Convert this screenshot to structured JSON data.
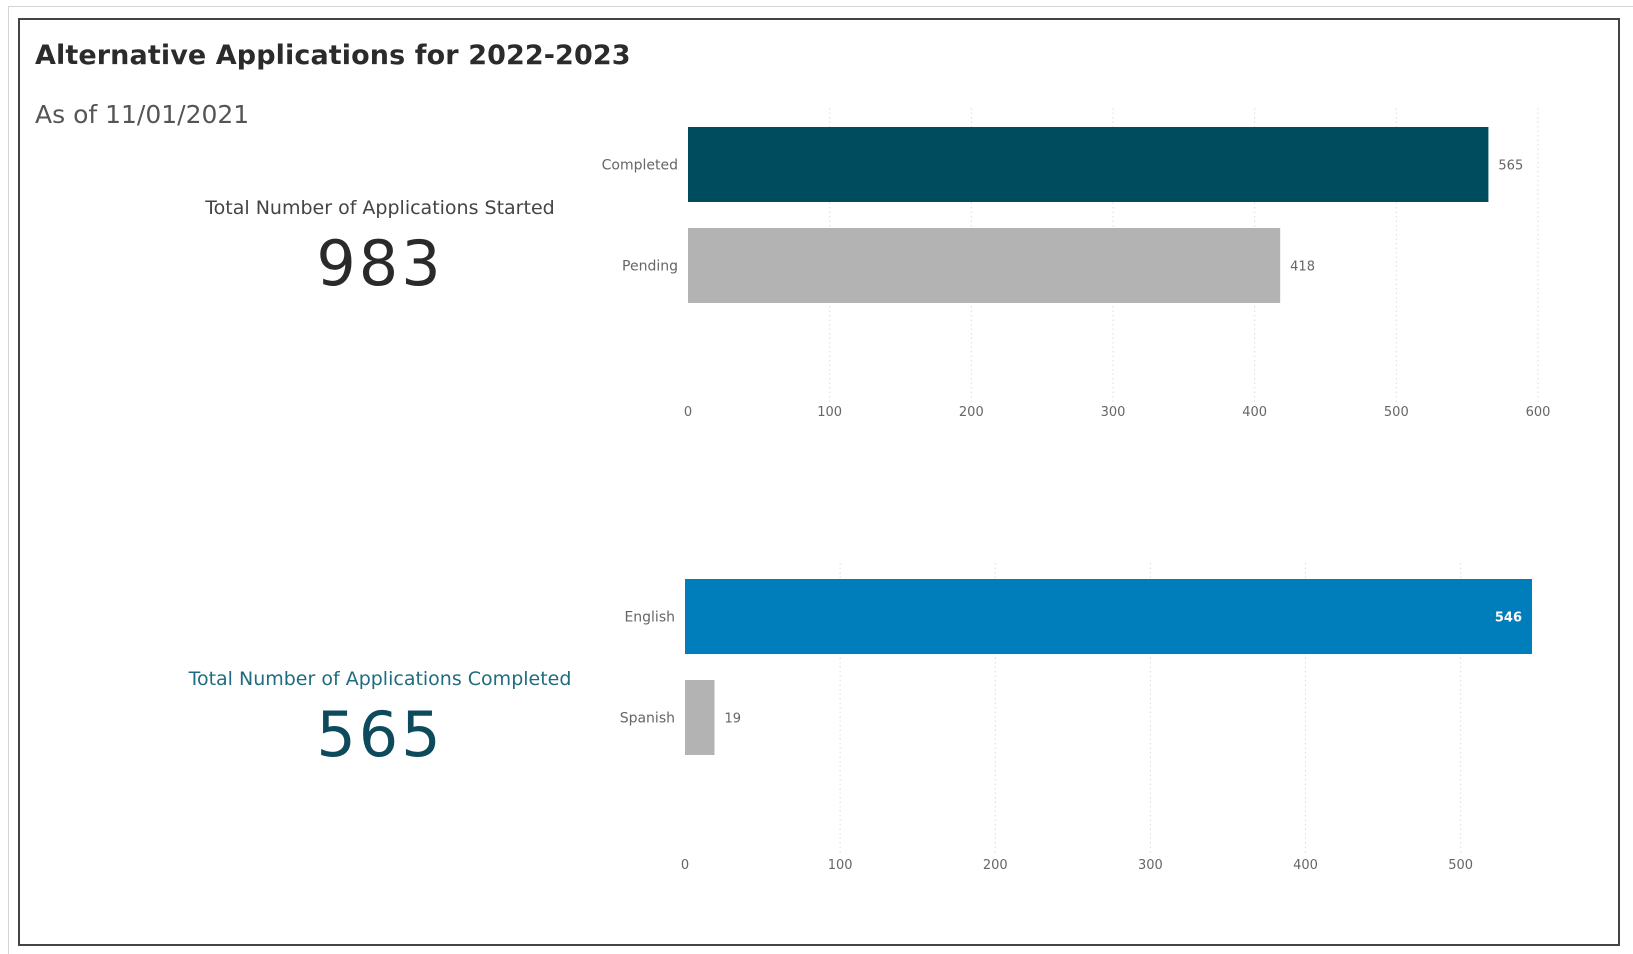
{
  "header": {
    "title": "Alternative Applications for 2022-2023",
    "as_of": "As of  11/01/2021"
  },
  "cards": {
    "started": {
      "label": "Total Number of Applications Started",
      "value": "983"
    },
    "completed": {
      "label": "Total Number of Applications Completed",
      "value": "565"
    }
  },
  "chart_data": [
    {
      "type": "bar",
      "orientation": "horizontal",
      "categories": [
        "Completed",
        "Pending"
      ],
      "values": [
        565,
        418
      ],
      "data_labels": [
        "565",
        "418"
      ],
      "colors": [
        "#004c5f",
        "#b3b3b3"
      ],
      "xlim": [
        0,
        600
      ],
      "x_ticks": [
        0,
        100,
        200,
        300,
        400,
        500,
        600
      ],
      "grid": true,
      "data_label_position": "outside-end"
    },
    {
      "type": "bar",
      "orientation": "horizontal",
      "categories": [
        "English",
        "Spanish"
      ],
      "values": [
        546,
        19
      ],
      "data_labels": [
        "546",
        "19"
      ],
      "colors": [
        "#007dbb",
        "#b3b3b3"
      ],
      "xlim": [
        0,
        546
      ],
      "x_ticks": [
        0,
        100,
        200,
        300,
        400,
        500
      ],
      "grid": true,
      "data_label_position": [
        "inside-end",
        "outside-end"
      ]
    }
  ]
}
